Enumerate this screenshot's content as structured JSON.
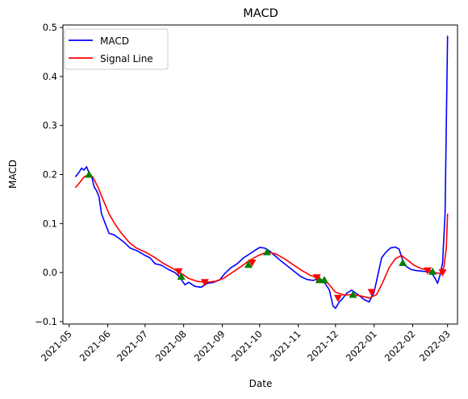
{
  "chart_data": {
    "type": "line",
    "title": "MACD",
    "xlabel": "Date",
    "ylabel": "MACD",
    "x_range": [
      "2021-04-26",
      "2022-03-09"
    ],
    "ylim": [
      -0.105,
      0.505
    ],
    "grid": false,
    "legend_position": "upper left",
    "x_ticks": [
      "2021-05",
      "2021-06",
      "2021-07",
      "2021-08",
      "2021-09",
      "2021-10",
      "2021-11",
      "2021-12",
      "2022-01",
      "2022-02",
      "2022-03"
    ],
    "y_ticks": [
      "−0.1",
      "0.0",
      "0.1",
      "0.2",
      "0.3",
      "0.4",
      "0.5"
    ],
    "series": [
      {
        "name": "MACD",
        "color": "#0000ff",
        "points": [
          [
            "2021-05-06",
            0.195
          ],
          [
            "2021-05-09",
            0.205
          ],
          [
            "2021-05-11",
            0.213
          ],
          [
            "2021-05-13",
            0.209
          ],
          [
            "2021-05-15",
            0.216
          ],
          [
            "2021-05-17",
            0.203
          ],
          [
            "2021-05-19",
            0.197
          ],
          [
            "2021-05-21",
            0.175
          ],
          [
            "2021-05-23",
            0.167
          ],
          [
            "2021-05-25",
            0.155
          ],
          [
            "2021-05-27",
            0.12
          ],
          [
            "2021-05-30",
            0.1
          ],
          [
            "2021-06-02",
            0.08
          ],
          [
            "2021-06-06",
            0.077
          ],
          [
            "2021-06-10",
            0.07
          ],
          [
            "2021-06-14",
            0.062
          ],
          [
            "2021-06-19",
            0.05
          ],
          [
            "2021-06-25",
            0.044
          ],
          [
            "2021-07-01",
            0.035
          ],
          [
            "2021-07-05",
            0.03
          ],
          [
            "2021-07-09",
            0.018
          ],
          [
            "2021-07-14",
            0.015
          ],
          [
            "2021-07-20",
            0.006
          ],
          [
            "2021-07-25",
            0.0
          ],
          [
            "2021-07-29",
            -0.01
          ],
          [
            "2021-08-02",
            -0.025
          ],
          [
            "2021-08-05",
            -0.02
          ],
          [
            "2021-08-10",
            -0.028
          ],
          [
            "2021-08-15",
            -0.03
          ],
          [
            "2021-08-20",
            -0.022
          ],
          [
            "2021-08-25",
            -0.02
          ],
          [
            "2021-08-30",
            -0.015
          ],
          [
            "2021-09-03",
            -0.002
          ],
          [
            "2021-09-08",
            0.01
          ],
          [
            "2021-09-13",
            0.018
          ],
          [
            "2021-09-18",
            0.03
          ],
          [
            "2021-09-23",
            0.038
          ],
          [
            "2021-09-27",
            0.045
          ],
          [
            "2021-10-01",
            0.051
          ],
          [
            "2021-10-05",
            0.05
          ],
          [
            "2021-10-09",
            0.044
          ],
          [
            "2021-10-14",
            0.033
          ],
          [
            "2021-10-19",
            0.022
          ],
          [
            "2021-10-24",
            0.012
          ],
          [
            "2021-10-29",
            0.002
          ],
          [
            "2021-11-03",
            -0.008
          ],
          [
            "2021-11-08",
            -0.014
          ],
          [
            "2021-11-13",
            -0.016
          ],
          [
            "2021-11-18",
            -0.012
          ],
          [
            "2021-11-22",
            -0.02
          ],
          [
            "2021-11-26",
            -0.035
          ],
          [
            "2021-11-29",
            -0.068
          ],
          [
            "2021-12-01",
            -0.073
          ],
          [
            "2021-12-04",
            -0.06
          ],
          [
            "2021-12-07",
            -0.052
          ],
          [
            "2021-12-10",
            -0.042
          ],
          [
            "2021-12-14",
            -0.036
          ],
          [
            "2021-12-19",
            -0.045
          ],
          [
            "2021-12-24",
            -0.055
          ],
          [
            "2021-12-28",
            -0.06
          ],
          [
            "2022-01-01",
            -0.04
          ],
          [
            "2022-01-04",
            -0.005
          ],
          [
            "2022-01-07",
            0.03
          ],
          [
            "2022-01-10",
            0.04
          ],
          [
            "2022-01-14",
            0.05
          ],
          [
            "2022-01-18",
            0.052
          ],
          [
            "2022-01-21",
            0.048
          ],
          [
            "2022-01-24",
            0.025
          ],
          [
            "2022-01-27",
            0.012
          ],
          [
            "2022-01-31",
            0.006
          ],
          [
            "2022-02-04",
            0.004
          ],
          [
            "2022-02-08",
            0.003
          ],
          [
            "2022-02-12",
            0.002
          ],
          [
            "2022-02-16",
            0.0
          ],
          [
            "2022-02-19",
            -0.012
          ],
          [
            "2022-02-21",
            -0.022
          ],
          [
            "2022-02-23",
            -0.005
          ],
          [
            "2022-02-25",
            0.02
          ],
          [
            "2022-02-27",
            0.12
          ],
          [
            "2022-02-28",
            0.3
          ],
          [
            "2022-03-01",
            0.483
          ]
        ]
      },
      {
        "name": "Signal Line",
        "color": "#ff0000",
        "points": [
          [
            "2021-05-06",
            0.173
          ],
          [
            "2021-05-09",
            0.182
          ],
          [
            "2021-05-13",
            0.195
          ],
          [
            "2021-05-17",
            0.2
          ],
          [
            "2021-05-20",
            0.195
          ],
          [
            "2021-05-24",
            0.175
          ],
          [
            "2021-05-28",
            0.15
          ],
          [
            "2021-06-02",
            0.12
          ],
          [
            "2021-06-07",
            0.098
          ],
          [
            "2021-06-12",
            0.08
          ],
          [
            "2021-06-18",
            0.062
          ],
          [
            "2021-06-24",
            0.05
          ],
          [
            "2021-07-01",
            0.042
          ],
          [
            "2021-07-08",
            0.032
          ],
          [
            "2021-07-15",
            0.02
          ],
          [
            "2021-07-22",
            0.01
          ],
          [
            "2021-07-29",
            0.0
          ],
          [
            "2021-08-05",
            -0.012
          ],
          [
            "2021-08-12",
            -0.018
          ],
          [
            "2021-08-19",
            -0.02
          ],
          [
            "2021-08-26",
            -0.018
          ],
          [
            "2021-09-02",
            -0.012
          ],
          [
            "2021-09-09",
            0.0
          ],
          [
            "2021-09-16",
            0.012
          ],
          [
            "2021-09-23",
            0.025
          ],
          [
            "2021-09-30",
            0.035
          ],
          [
            "2021-10-07",
            0.042
          ],
          [
            "2021-10-14",
            0.038
          ],
          [
            "2021-10-21",
            0.028
          ],
          [
            "2021-10-28",
            0.016
          ],
          [
            "2021-11-04",
            0.004
          ],
          [
            "2021-11-11",
            -0.006
          ],
          [
            "2021-11-18",
            -0.012
          ],
          [
            "2021-11-25",
            -0.022
          ],
          [
            "2021-12-01",
            -0.04
          ],
          [
            "2021-12-08",
            -0.046
          ],
          [
            "2021-12-15",
            -0.045
          ],
          [
            "2021-12-22",
            -0.048
          ],
          [
            "2021-12-28",
            -0.052
          ],
          [
            "2022-01-03",
            -0.045
          ],
          [
            "2022-01-08",
            -0.02
          ],
          [
            "2022-01-13",
            0.01
          ],
          [
            "2022-01-18",
            0.028
          ],
          [
            "2022-01-23",
            0.035
          ],
          [
            "2022-01-28",
            0.025
          ],
          [
            "2022-02-02",
            0.015
          ],
          [
            "2022-02-08",
            0.008
          ],
          [
            "2022-02-14",
            0.005
          ],
          [
            "2022-02-19",
            0.0
          ],
          [
            "2022-02-23",
            -0.002
          ],
          [
            "2022-02-26",
            0.01
          ],
          [
            "2022-02-28",
            0.05
          ],
          [
            "2022-03-01",
            0.12
          ]
        ]
      }
    ],
    "buy_markers": {
      "marker": "triangle-up",
      "color": "#008000",
      "points": [
        [
          "2021-05-17",
          0.2
        ],
        [
          "2021-07-30",
          -0.008
        ],
        [
          "2021-09-22",
          0.016
        ],
        [
          "2021-10-07",
          0.042
        ],
        [
          "2021-11-18",
          -0.015
        ],
        [
          "2021-11-22",
          -0.015
        ],
        [
          "2021-12-15",
          -0.045
        ],
        [
          "2022-01-24",
          0.02
        ],
        [
          "2022-02-17",
          0.002
        ]
      ]
    },
    "sell_markers": {
      "marker": "triangle-down",
      "color": "#ff0000",
      "points": [
        [
          "2021-07-28",
          0.002
        ],
        [
          "2021-08-18",
          -0.02
        ],
        [
          "2021-09-25",
          0.02
        ],
        [
          "2021-11-16",
          -0.01
        ],
        [
          "2021-12-03",
          -0.052
        ],
        [
          "2021-12-30",
          -0.04
        ],
        [
          "2022-02-13",
          0.004
        ],
        [
          "2022-02-25",
          0.0
        ]
      ]
    }
  }
}
